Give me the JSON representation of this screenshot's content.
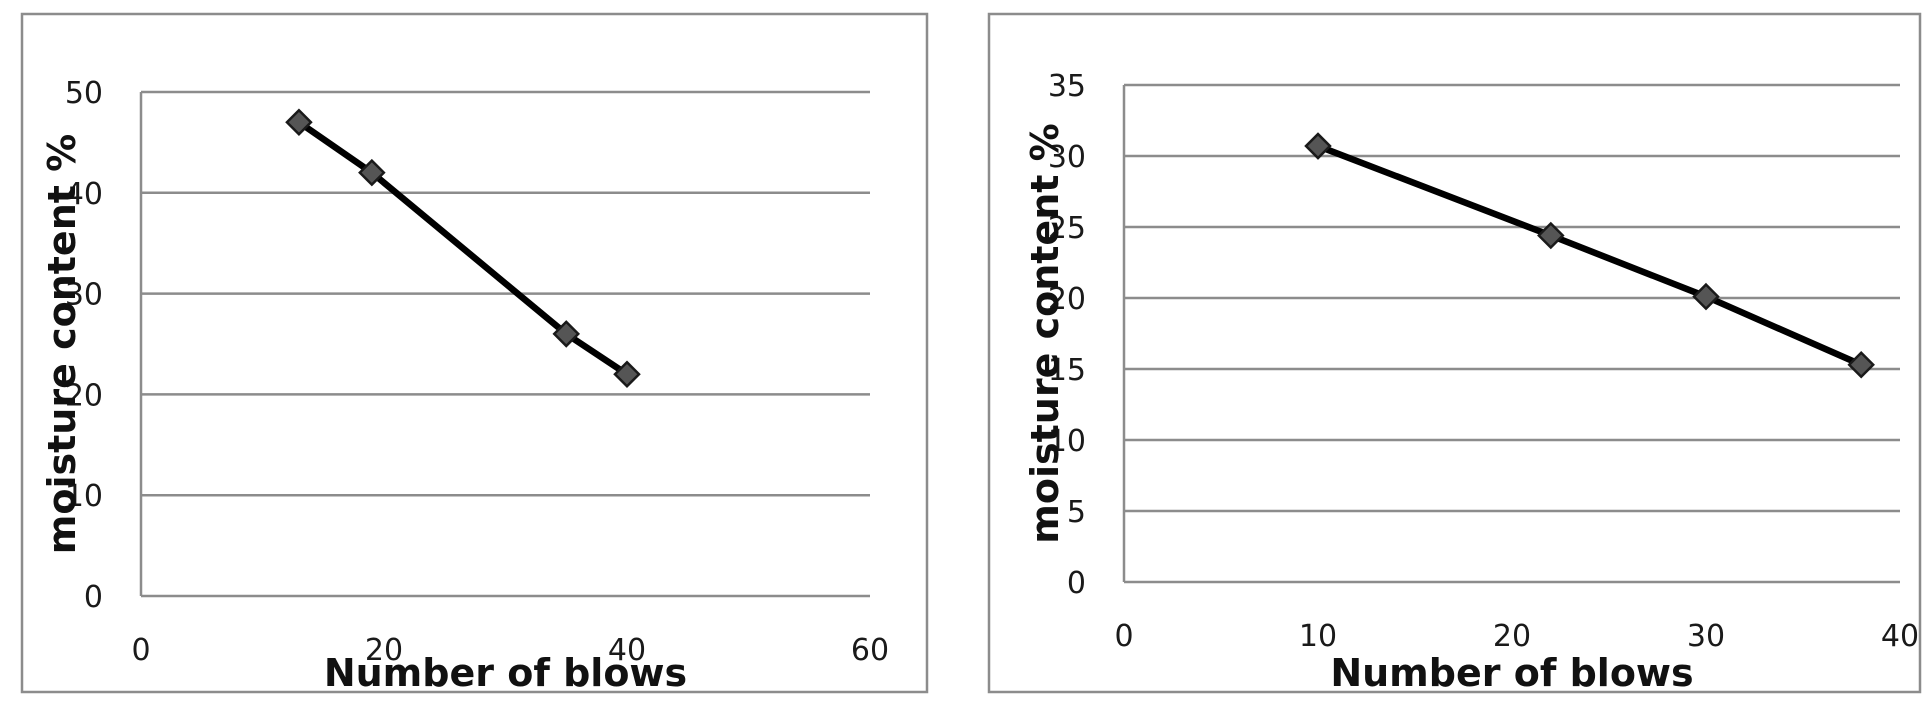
{
  "chart_data": [
    {
      "type": "line",
      "title": "",
      "xlabel": "Number of blows",
      "ylabel": "moisture content %",
      "xlim": [
        0,
        60
      ],
      "ylim": [
        0,
        50
      ],
      "xticks": [
        0,
        20,
        40,
        60
      ],
      "yticks": [
        0,
        10,
        20,
        30,
        40,
        50
      ],
      "grid": true,
      "legend": "none",
      "series": [
        {
          "x": [
            13,
            19,
            35,
            40
          ],
          "values": [
            47,
            42,
            26,
            22
          ],
          "color": "#000000",
          "marker": "diamond"
        }
      ]
    },
    {
      "type": "line",
      "title": "",
      "xlabel": "Number of blows",
      "ylabel": "moisture content %",
      "xlim": [
        0,
        40
      ],
      "ylim": [
        0,
        35
      ],
      "xticks": [
        0,
        10,
        20,
        30,
        40
      ],
      "yticks": [
        0,
        5,
        10,
        15,
        20,
        25,
        30,
        35
      ],
      "grid": true,
      "legend": "none",
      "series": [
        {
          "x": [
            10,
            22,
            30,
            38
          ],
          "values": [
            30.7,
            24.4,
            20.1,
            15.3
          ],
          "color": "#000000",
          "marker": "diamond"
        }
      ]
    }
  ]
}
